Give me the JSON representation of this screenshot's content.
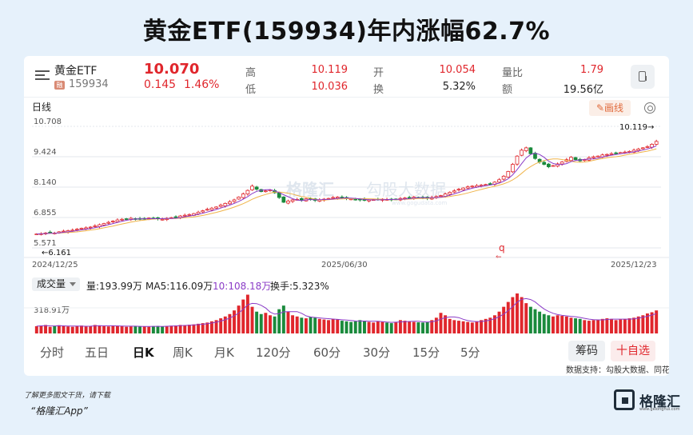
{
  "title": "黄金ETF(159934)年内涨幅62.7%",
  "quote": {
    "name": "黄金ETF",
    "badge": "融",
    "code": "159934",
    "price": "10.070",
    "change": "0.145",
    "change_pct": "1.46%",
    "high_label": "高",
    "high": "10.119",
    "low_label": "低",
    "low": "10.036",
    "open_label": "开",
    "open": "10.054",
    "turnover_label": "换",
    "turnover": "5.32%",
    "vol_ratio_label": "量比",
    "vol_ratio": "1.79",
    "amount_label": "额",
    "amount": "19.56亿"
  },
  "toolbar": {
    "period": "日线",
    "draw_label": "画线"
  },
  "watermark": {
    "brand": "格隆汇",
    "partner": "勾股大数据",
    "url": "www.gogudata.com"
  },
  "volume_panel": {
    "selector": "成交量",
    "vol": "量:193.99万",
    "ma5": "MA5:116.09万",
    "ma10": "10:108.18万",
    "turnover": "换手:5.323%"
  },
  "tabs": [
    "分时",
    "五日",
    "日K",
    "周K",
    "月K",
    "120分",
    "60分",
    "30分",
    "15分",
    "5分"
  ],
  "active_tab": "日K",
  "buttons": {
    "chips": "筹码",
    "add_watch": "十自选"
  },
  "source": "数据支持：勾股大数据、同花顺",
  "footer": {
    "line1": "了解更多图文干货，请下载",
    "line2": "“格隆汇App”",
    "logo": "格隆汇",
    "logo_url": "www.gelonghui.com"
  },
  "colors": {
    "up": "#e0262c",
    "down": "#1a8a3c",
    "ma_purple": "#8b3cc7",
    "ma_dark": "#222222"
  },
  "chart_data": [
    {
      "type": "candlestick",
      "x_start": "2024/12/25",
      "x_mid": "2025/06/30",
      "x_end": "2025/12/23",
      "x_ticks": [
        "2024/12/25",
        "2025/06/30",
        "2025/12/23"
      ],
      "y_ticks": [
        "10.708",
        "9.424",
        "8.140",
        "6.855",
        "5.571"
      ],
      "ylim": [
        5.571,
        10.708
      ],
      "max_label": "10.119→",
      "min_label": "←6.161",
      "marker": "q",
      "close": [
        6.16,
        6.17,
        6.2,
        6.22,
        6.2,
        6.25,
        6.28,
        6.3,
        6.32,
        6.36,
        6.4,
        6.42,
        6.45,
        6.5,
        6.55,
        6.6,
        6.65,
        6.7,
        6.75,
        6.78,
        6.8,
        6.82,
        6.8,
        6.78,
        6.8,
        6.83,
        6.82,
        6.8,
        6.78,
        6.82,
        6.85,
        6.88,
        6.92,
        6.95,
        6.98,
        7.02,
        7.08,
        7.14,
        7.2,
        7.25,
        7.3,
        7.38,
        7.45,
        7.52,
        7.6,
        7.72,
        7.85,
        8.0,
        8.18,
        8.05,
        7.95,
        7.98,
        8.02,
        7.9,
        7.7,
        7.5,
        7.55,
        7.6,
        7.62,
        7.58,
        7.65,
        7.62,
        7.58,
        7.6,
        7.63,
        7.66,
        7.7,
        7.72,
        7.68,
        7.65,
        7.64,
        7.62,
        7.6,
        7.58,
        7.6,
        7.61,
        7.62,
        7.63,
        7.62,
        7.6,
        7.62,
        7.66,
        7.68,
        7.7,
        7.72,
        7.7,
        7.68,
        7.66,
        7.7,
        7.74,
        7.78,
        7.85,
        7.92,
        7.98,
        8.05,
        8.1,
        8.15,
        8.18,
        8.2,
        8.22,
        8.25,
        8.28,
        8.35,
        8.45,
        8.6,
        8.8,
        9.1,
        9.45,
        9.7,
        9.8,
        9.55,
        9.35,
        9.2,
        9.1,
        9.0,
        9.05,
        9.12,
        9.2,
        9.3,
        9.4,
        9.3,
        9.25,
        9.3,
        9.38,
        9.42,
        9.45,
        9.5,
        9.52,
        9.55,
        9.58,
        9.6,
        9.62,
        9.65,
        9.7,
        9.75,
        9.8,
        9.85,
        9.95,
        10.07
      ],
      "volume_ylabel": "318.91万",
      "volume": [
        60,
        65,
        70,
        55,
        60,
        68,
        62,
        58,
        55,
        60,
        65,
        58,
        62,
        70,
        66,
        60,
        58,
        62,
        64,
        60,
        55,
        58,
        62,
        60,
        57,
        55,
        60,
        62,
        58,
        61,
        64,
        66,
        70,
        68,
        72,
        75,
        80,
        85,
        90,
        100,
        110,
        125,
        140,
        160,
        190,
        230,
        280,
        320,
        220,
        180,
        160,
        170,
        150,
        140,
        200,
        230,
        180,
        150,
        140,
        130,
        125,
        135,
        130,
        120,
        115,
        110,
        120,
        115,
        105,
        100,
        95,
        100,
        110,
        105,
        95,
        90,
        100,
        95,
        90,
        85,
        95,
        110,
        105,
        100,
        95,
        92,
        90,
        95,
        110,
        130,
        170,
        150,
        120,
        110,
        105,
        100,
        95,
        90,
        100,
        110,
        120,
        130,
        150,
        180,
        220,
        260,
        300,
        330,
        300,
        250,
        220,
        200,
        180,
        160,
        150,
        140,
        150,
        145,
        140,
        130,
        125,
        120,
        110,
        105,
        110,
        115,
        120,
        125,
        120,
        110,
        115,
        120,
        125,
        130,
        140,
        150,
        165,
        175,
        190
      ]
    }
  ]
}
